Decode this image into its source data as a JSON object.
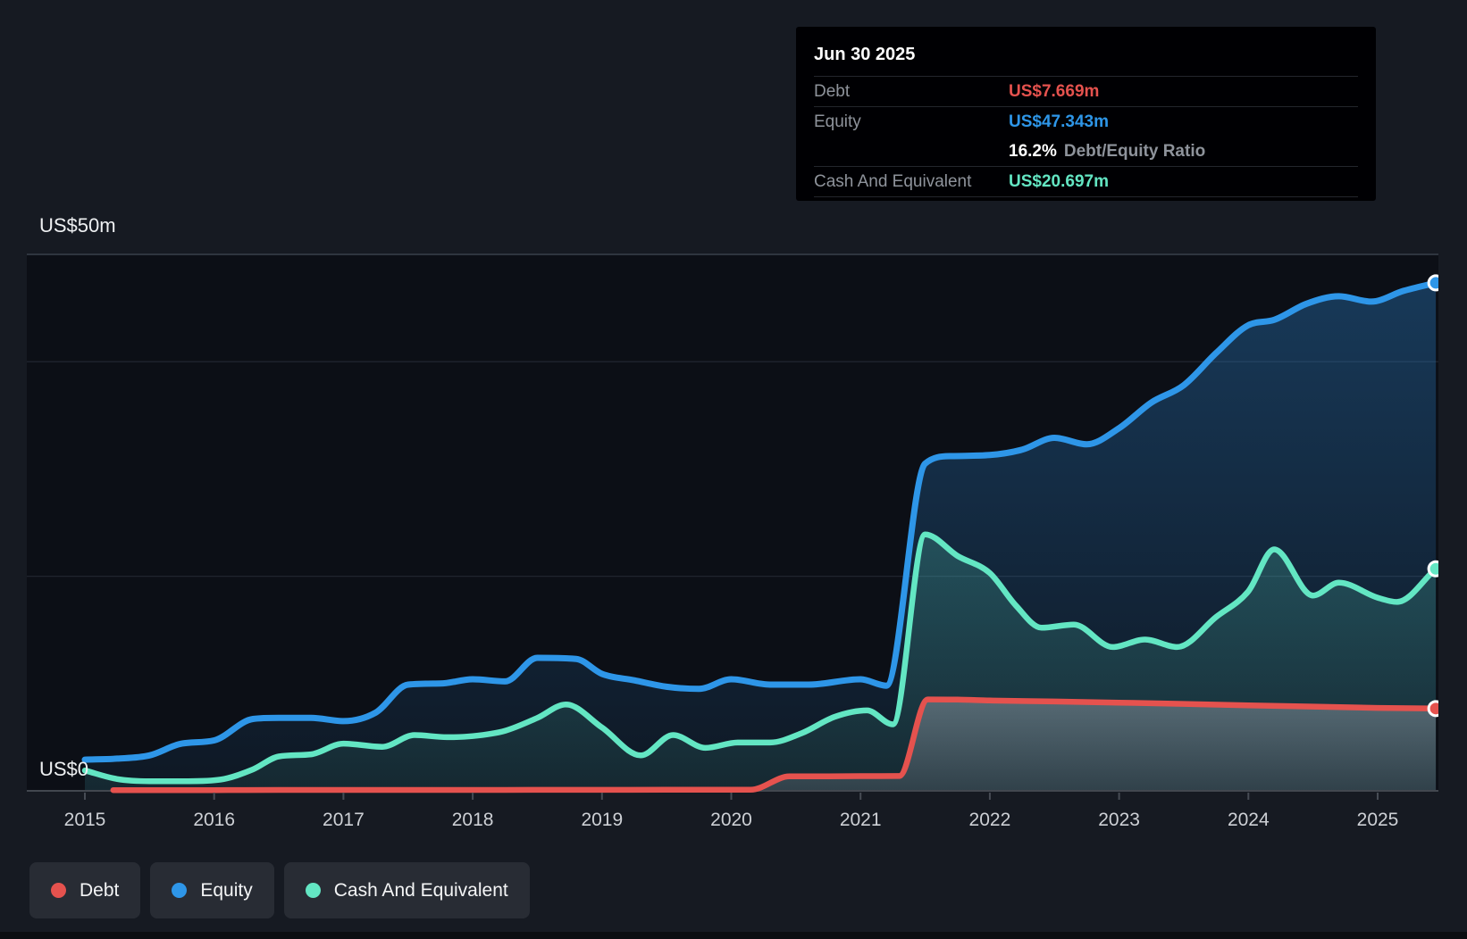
{
  "axis": {
    "y_top_label": "US$50m",
    "y_zero_label": "US$0",
    "x_labels": [
      "2015",
      "2016",
      "2017",
      "2018",
      "2019",
      "2020",
      "2021",
      "2022",
      "2023",
      "2024",
      "2025"
    ]
  },
  "tooltip": {
    "date": "Jun 30 2025",
    "rows": [
      {
        "label": "Debt",
        "value": "US$7.669m",
        "color": "#e5524e"
      },
      {
        "label": "Equity",
        "value": "US$47.343m",
        "color": "#2e96e8"
      },
      {
        "label": "Cash And Equivalent",
        "value": "US$20.697m",
        "color": "#63e6c3"
      }
    ],
    "ratio_value": "16.2%",
    "ratio_label": "Debt/Equity Ratio"
  },
  "legend": {
    "items": [
      {
        "label": "Debt",
        "color": "#e5524e"
      },
      {
        "label": "Equity",
        "color": "#2e96e8"
      },
      {
        "label": "Cash And Equivalent",
        "color": "#63e6c3"
      }
    ]
  },
  "chart_data": {
    "type": "area",
    "title": "Debt to Equity history",
    "x_axis": {
      "min": 2015.0,
      "max": 2025.47,
      "tick_years": [
        2015,
        2016,
        2017,
        2018,
        2019,
        2020,
        2021,
        2022,
        2023,
        2024,
        2025
      ]
    },
    "y_axis": {
      "min": 0,
      "max": 50,
      "unit": "US$ millions",
      "top_label": "US$50m",
      "zero_label": "US$0",
      "gridlines_m": [
        50,
        40,
        20,
        0
      ]
    },
    "grid": "horizontal-only",
    "legend_position": "bottom-left",
    "series": [
      {
        "name": "Equity",
        "color": "#2e96e8",
        "final_value_label": "US$47.343m",
        "points": [
          [
            2015,
            2.9
          ],
          [
            2015.25,
            3.0
          ],
          [
            2015.5,
            3.3
          ],
          [
            2015.75,
            4.4
          ],
          [
            2016,
            4.7
          ],
          [
            2016.3,
            6.7
          ],
          [
            2016.5,
            6.8
          ],
          [
            2016.75,
            6.8
          ],
          [
            2017,
            6.5
          ],
          [
            2017.25,
            7.3
          ],
          [
            2017.5,
            9.9
          ],
          [
            2017.75,
            10.0
          ],
          [
            2018,
            10.4
          ],
          [
            2018.25,
            10.2
          ],
          [
            2018.5,
            12.4
          ],
          [
            2018.8,
            12.3
          ],
          [
            2019,
            10.9
          ],
          [
            2019.25,
            10.3
          ],
          [
            2019.5,
            9.7
          ],
          [
            2019.75,
            9.5
          ],
          [
            2020,
            10.4
          ],
          [
            2020.3,
            9.9
          ],
          [
            2020.6,
            9.9
          ],
          [
            2021,
            10.4
          ],
          [
            2021.2,
            9.8
          ],
          [
            2021.5,
            30.5
          ],
          [
            2021.7,
            31.2
          ],
          [
            2022,
            31.3
          ],
          [
            2022.25,
            31.8
          ],
          [
            2022.5,
            32.9
          ],
          [
            2022.75,
            32.3
          ],
          [
            2023,
            33.8
          ],
          [
            2023.25,
            36.2
          ],
          [
            2023.5,
            37.8
          ],
          [
            2023.75,
            40.8
          ],
          [
            2024,
            43.4
          ],
          [
            2024.2,
            43.9
          ],
          [
            2024.45,
            45.4
          ],
          [
            2024.7,
            46.1
          ],
          [
            2024.95,
            45.6
          ],
          [
            2025.2,
            46.6
          ],
          [
            2025.45,
            47.343
          ]
        ]
      },
      {
        "name": "Cash And Equivalent",
        "color": "#63e6c3",
        "final_value_label": "US$20.697m",
        "points": [
          [
            2015,
            1.9
          ],
          [
            2015.25,
            1.1
          ],
          [
            2015.5,
            0.9
          ],
          [
            2015.8,
            0.9
          ],
          [
            2016.05,
            1.05
          ],
          [
            2016.3,
            2.0
          ],
          [
            2016.5,
            3.2
          ],
          [
            2016.75,
            3.4
          ],
          [
            2017,
            4.4
          ],
          [
            2017.3,
            4.1
          ],
          [
            2017.55,
            5.2
          ],
          [
            2017.8,
            5.0
          ],
          [
            2018,
            5.1
          ],
          [
            2018.25,
            5.6
          ],
          [
            2018.5,
            6.8
          ],
          [
            2018.72,
            8.05
          ],
          [
            2019,
            5.9
          ],
          [
            2019.3,
            3.3
          ],
          [
            2019.55,
            5.2
          ],
          [
            2019.8,
            4.0
          ],
          [
            2020.05,
            4.5
          ],
          [
            2020.3,
            4.5
          ],
          [
            2020.55,
            5.4
          ],
          [
            2020.8,
            6.9
          ],
          [
            2021.05,
            7.5
          ],
          [
            2021.25,
            6.2
          ],
          [
            2021.5,
            23.9
          ],
          [
            2021.75,
            21.9
          ],
          [
            2022,
            20.3
          ],
          [
            2022.2,
            17.3
          ],
          [
            2022.4,
            15.2
          ],
          [
            2022.65,
            15.5
          ],
          [
            2022.95,
            13.4
          ],
          [
            2023.2,
            14.1
          ],
          [
            2023.45,
            13.4
          ],
          [
            2023.75,
            16.2
          ],
          [
            2024,
            18.6
          ],
          [
            2024.2,
            22.5
          ],
          [
            2024.5,
            18.2
          ],
          [
            2024.7,
            19.4
          ],
          [
            2025,
            18.0
          ],
          [
            2025.15,
            17.6
          ],
          [
            2025.45,
            20.697
          ]
        ]
      },
      {
        "name": "Debt",
        "color": "#e5524e",
        "final_value_label": "US$7.669m",
        "points": [
          [
            2015.22,
            0.07
          ],
          [
            2015.5,
            0.07
          ],
          [
            2016,
            0.07
          ],
          [
            2016.5,
            0.08
          ],
          [
            2017,
            0.08
          ],
          [
            2017.5,
            0.08
          ],
          [
            2018,
            0.08
          ],
          [
            2018.5,
            0.09
          ],
          [
            2019,
            0.09
          ],
          [
            2019.5,
            0.1
          ],
          [
            2020.15,
            0.1
          ],
          [
            2020.45,
            1.35
          ],
          [
            2020.75,
            1.36
          ],
          [
            2021,
            1.37
          ],
          [
            2021.3,
            1.38
          ],
          [
            2021.52,
            8.52
          ],
          [
            2021.75,
            8.5
          ],
          [
            2022,
            8.42
          ],
          [
            2022.5,
            8.33
          ],
          [
            2023,
            8.22
          ],
          [
            2023.5,
            8.1
          ],
          [
            2024,
            7.97
          ],
          [
            2024.5,
            7.85
          ],
          [
            2025,
            7.73
          ],
          [
            2025.45,
            7.669
          ]
        ]
      }
    ]
  }
}
